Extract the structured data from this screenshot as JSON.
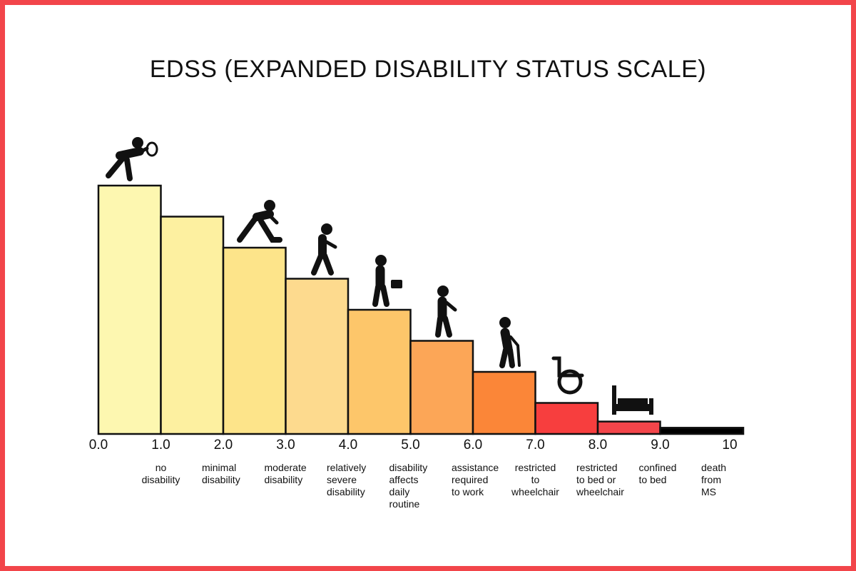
{
  "title": "EDSS (EXPANDED DISABILITY STATUS SCALE)",
  "scale_min": 0,
  "scale_max": 10,
  "ticks": [
    "0.0",
    "1.0",
    "2.0",
    "3.0",
    "4.0",
    "5.0",
    "6.0",
    "7.0",
    "8.0",
    "9.0",
    "10"
  ],
  "steps": [
    {
      "from": 0.0,
      "level": 8.0,
      "color": "#fdf7b0",
      "icon": "tennis-player-icon"
    },
    {
      "from": 1.0,
      "level": 7.0,
      "color": "#fdf0a0",
      "icon": ""
    },
    {
      "from": 2.0,
      "level": 6.0,
      "color": "#fde48a",
      "icon": "runner-icon"
    },
    {
      "from": 3.0,
      "level": 5.0,
      "color": "#fdda8e",
      "icon": "walker-icon"
    },
    {
      "from": 4.0,
      "level": 4.0,
      "color": "#fdc66a",
      "icon": "person-with-briefcase-icon"
    },
    {
      "from": 5.0,
      "level": 3.0,
      "color": "#fca657",
      "icon": "slow-walker-icon"
    },
    {
      "from": 6.0,
      "level": 2.0,
      "color": "#fb8638",
      "icon": "person-with-cane-icon"
    },
    {
      "from": 7.0,
      "level": 1.0,
      "color": "#f73e3e",
      "icon": "wheelchair-icon"
    },
    {
      "from": 8.0,
      "level": 0.4,
      "color": "#f3454a",
      "icon": "bed-icon"
    },
    {
      "from": 9.0,
      "level": 0.2,
      "color": "#000000",
      "icon": ""
    }
  ],
  "descriptions": [
    {
      "text": "no\ndisability",
      "align": "center"
    },
    {
      "text": "minimal\ndisability",
      "align": "left"
    },
    {
      "text": "moderate\ndisability",
      "align": "left"
    },
    {
      "text": "relatively\nsevere\ndisability",
      "align": "left"
    },
    {
      "text": "disability\naffects\ndaily\nroutine",
      "align": "left"
    },
    {
      "text": "assistance\nrequired\nto work",
      "align": "left"
    },
    {
      "text": "restricted\nto\nwheelchair",
      "align": "center"
    },
    {
      "text": "restricted\nto bed or\nwheelchair",
      "align": "left"
    },
    {
      "text": "confined\nto bed",
      "align": "left"
    },
    {
      "text": "death\nfrom\nMS",
      "align": "left"
    }
  ]
}
